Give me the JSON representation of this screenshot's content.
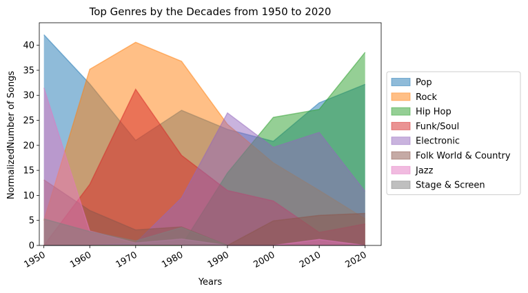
{
  "chart_data": {
    "type": "area",
    "title": "Top Genres by the Decades from 1950 to 2020",
    "xlabel": "Years",
    "ylabel": "NormalizedNumber of Songs",
    "x": [
      1950,
      1960,
      1970,
      1980,
      1990,
      2000,
      2010,
      2020
    ],
    "xlim": [
      1949,
      2023.5
    ],
    "ylim": [
      0,
      44.5
    ],
    "yticks": [
      0,
      5,
      10,
      15,
      20,
      25,
      30,
      35,
      40
    ],
    "xticks": [
      1950,
      1960,
      1970,
      1980,
      1990,
      2000,
      2010,
      2020
    ],
    "grid": false,
    "legend_position": "right",
    "series": [
      {
        "name": "Pop",
        "color": "#1f77b4",
        "values": [
          42.1,
          32.3,
          21.0,
          27.0,
          23.2,
          20.8,
          28.5,
          32.2
        ]
      },
      {
        "name": "Rock",
        "color": "#ff7f0e",
        "values": [
          5.0,
          35.2,
          40.6,
          36.8,
          24.2,
          16.5,
          11.0,
          5.3
        ]
      },
      {
        "name": "Hip Hop",
        "color": "#2ca02c",
        "values": [
          0,
          0,
          0,
          0,
          14.5,
          25.6,
          27.2,
          38.6
        ]
      },
      {
        "name": "Funk/Soul",
        "color": "#d62728",
        "values": [
          0,
          12.2,
          31.2,
          18.0,
          11.0,
          8.9,
          2.6,
          4.3
        ]
      },
      {
        "name": "Electronic",
        "color": "#9467bd",
        "values": [
          0,
          0,
          0.5,
          9.5,
          26.5,
          19.6,
          22.6,
          10.8
        ]
      },
      {
        "name": "Folk World & Country",
        "color": "#8c564b",
        "values": [
          13.1,
          7.0,
          3.1,
          3.7,
          0,
          4.9,
          6.0,
          6.4
        ]
      },
      {
        "name": "Jazz",
        "color": "#e377c2",
        "values": [
          31.5,
          2.9,
          0.5,
          1.3,
          0,
          0,
          1.2,
          0
        ]
      },
      {
        "name": "Stage & Screen",
        "color": "#7f7f7f",
        "values": [
          5.3,
          2.8,
          0.9,
          3.6,
          0,
          0,
          0,
          0
        ]
      }
    ]
  }
}
